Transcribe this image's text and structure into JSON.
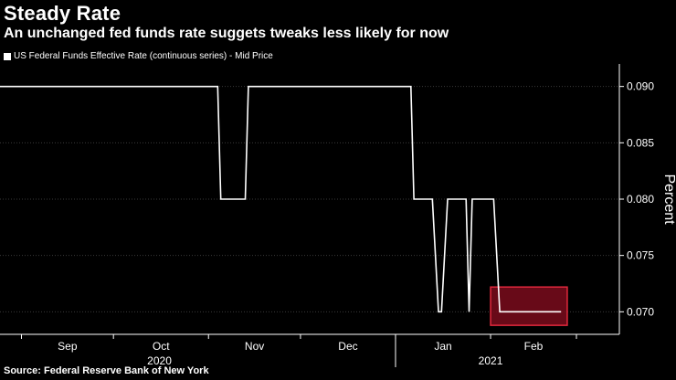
{
  "header": {
    "title": "Steady Rate",
    "subtitle": "An unchanged fed funds rate suggets tweaks less likely for now"
  },
  "legend": {
    "label": "US Federal Funds Effective Rate (continuous series) - Mid Price"
  },
  "footer": {
    "source": "Source: Federal Reserve Bank of New York"
  },
  "colors": {
    "background": "#000000",
    "line": "#ffffff",
    "grid": "#3a3a3a",
    "highlight_fill": "#7a0c1c",
    "highlight_stroke": "#e0283c"
  },
  "chart_data": {
    "type": "line",
    "title": "Steady Rate",
    "subtitle": "An unchanged fed funds rate suggets tweaks less likely for now",
    "ylabel": "Percent",
    "xlabel": "",
    "y_axis_position": "right",
    "ylim": [
      0.068,
      0.092
    ],
    "yticks": [
      0.07,
      0.075,
      0.08,
      0.085,
      0.09
    ],
    "ytick_labels": [
      "0.070",
      "0.075",
      "0.080",
      "0.085",
      "0.090"
    ],
    "xlim": [
      "2020-08-25",
      "2021-03-15"
    ],
    "month_ticks": [
      {
        "date": "2020-09-01",
        "label": "Sep"
      },
      {
        "date": "2020-10-01",
        "label": "Oct"
      },
      {
        "date": "2020-11-01",
        "label": "Nov"
      },
      {
        "date": "2020-12-01",
        "label": "Dec"
      },
      {
        "date": "2021-01-01",
        "label": "Jan"
      },
      {
        "date": "2021-02-01",
        "label": "Feb"
      },
      {
        "date": "2021-03-01",
        "label": ""
      }
    ],
    "year_labels": [
      {
        "date": "2020-10-16",
        "label": "2020"
      },
      {
        "date": "2021-02-01",
        "label": "2021"
      }
    ],
    "year_divider_date": "2021-01-01",
    "grid": "horizontal dotted",
    "series": [
      {
        "name": "US Federal Funds Effective Rate (continuous series) - Mid Price",
        "points": [
          [
            "2020-08-25",
            0.09
          ],
          [
            "2020-11-04",
            0.09
          ],
          [
            "2020-11-05",
            0.08
          ],
          [
            "2020-11-13",
            0.08
          ],
          [
            "2020-11-14",
            0.09
          ],
          [
            "2021-01-06",
            0.09
          ],
          [
            "2021-01-07",
            0.08
          ],
          [
            "2021-01-13",
            0.08
          ],
          [
            "2021-01-15",
            0.07
          ],
          [
            "2021-01-16",
            0.07
          ],
          [
            "2021-01-18",
            0.08
          ],
          [
            "2021-01-24",
            0.08
          ],
          [
            "2021-01-25",
            0.07
          ],
          [
            "2021-01-26",
            0.08
          ],
          [
            "2021-02-02",
            0.08
          ],
          [
            "2021-02-04",
            0.07
          ],
          [
            "2021-02-24",
            0.07
          ]
        ]
      }
    ],
    "annotations": [
      {
        "type": "highlight-box",
        "x_range": [
          "2021-02-01",
          "2021-02-26"
        ],
        "y_range": [
          0.0688,
          0.0722
        ]
      }
    ]
  }
}
